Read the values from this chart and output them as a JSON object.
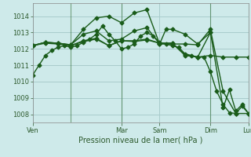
{
  "background_color": "#ceeaea",
  "grid_color": "#a8cccc",
  "line_color": "#1a5c1a",
  "title": "Pression niveau de la mer( hPa )",
  "ylim": [
    1007.5,
    1014.8
  ],
  "yticks": [
    1008,
    1009,
    1010,
    1011,
    1012,
    1013,
    1014
  ],
  "series": [
    {
      "x": [
        0,
        6,
        12,
        18,
        24,
        30,
        36,
        42,
        48,
        54,
        60,
        66,
        72,
        78,
        84,
        90,
        96,
        102,
        108,
        114,
        120,
        126,
        132,
        138,
        144,
        150,
        156,
        162,
        168,
        174,
        180,
        186,
        192,
        198,
        204
      ],
      "y": [
        1010.4,
        1011.0,
        1011.6,
        1011.9,
        1012.1,
        1012.2,
        1012.1,
        1012.2,
        1012.4,
        1012.6,
        1012.9,
        1013.4,
        1012.9,
        1012.5,
        1012.0,
        1012.1,
        1012.3,
        1012.8,
        1013.0,
        1012.8,
        1012.4,
        1012.3,
        1012.2,
        1012.1,
        1011.7,
        1011.6,
        1011.5,
        1011.5,
        1010.6,
        1009.4,
        1008.6,
        1008.1,
        1008.05,
        1008.5,
        1008.05
      ],
      "marker": "D",
      "markersize": 2.5,
      "linewidth": 1.0,
      "zorder": 2
    },
    {
      "x": [
        0,
        12,
        24,
        36,
        48,
        60,
        72,
        84,
        96,
        108,
        120,
        132,
        144,
        156,
        168,
        180,
        192,
        204
      ],
      "y": [
        1012.2,
        1012.35,
        1012.3,
        1012.2,
        1012.45,
        1012.6,
        1012.2,
        1012.5,
        1012.45,
        1012.55,
        1012.35,
        1012.35,
        1011.6,
        1011.5,
        1011.6,
        1011.5,
        1011.5,
        1011.5
      ],
      "marker": "D",
      "markersize": 2.5,
      "linewidth": 1.0,
      "zorder": 2
    },
    {
      "x": [
        0,
        12,
        24,
        36,
        48,
        60,
        72,
        84,
        96,
        108,
        120,
        132,
        144,
        156,
        168,
        180,
        192,
        204
      ],
      "y": [
        1012.2,
        1012.4,
        1012.35,
        1012.25,
        1013.2,
        1013.9,
        1014.0,
        1013.6,
        1014.2,
        1014.4,
        1012.3,
        1012.3,
        1012.3,
        1012.25,
        1013.2,
        1009.4,
        1008.05,
        1008.05
      ],
      "marker": "D",
      "markersize": 2.5,
      "linewidth": 1.0,
      "zorder": 3
    },
    {
      "x": [
        0,
        12,
        24,
        36,
        48,
        60,
        72,
        84,
        96,
        108,
        120,
        126,
        132,
        144,
        156,
        168,
        180,
        186,
        192,
        198,
        204
      ],
      "y": [
        1012.2,
        1012.4,
        1012.35,
        1012.25,
        1012.9,
        1013.1,
        1012.5,
        1012.6,
        1013.1,
        1013.3,
        1012.3,
        1013.2,
        1013.2,
        1012.9,
        1012.3,
        1013.0,
        1008.4,
        1009.5,
        1008.2,
        1008.6,
        1008.05
      ],
      "marker": "D",
      "markersize": 2.5,
      "linewidth": 1.0,
      "zorder": 2
    },
    {
      "x": [
        0,
        12,
        24,
        36,
        48,
        60,
        72,
        84,
        96,
        108,
        120,
        132,
        144,
        156,
        168
      ],
      "y": [
        1012.2,
        1012.4,
        1012.35,
        1012.2,
        1012.5,
        1012.65,
        1012.2,
        1012.5,
        1012.5,
        1012.6,
        1012.35,
        1012.35,
        1011.65,
        1011.5,
        1013.0
      ],
      "marker": "D",
      "markersize": 2.5,
      "linewidth": 1.0,
      "zorder": 2
    }
  ],
  "vline_positions": [
    36,
    84,
    168,
    204
  ],
  "day_tick_positions": [
    0,
    84,
    120,
    168,
    204
  ],
  "day_tick_labels": [
    "Ven",
    "Mar",
    "Sam",
    "Dim",
    "Lun"
  ]
}
